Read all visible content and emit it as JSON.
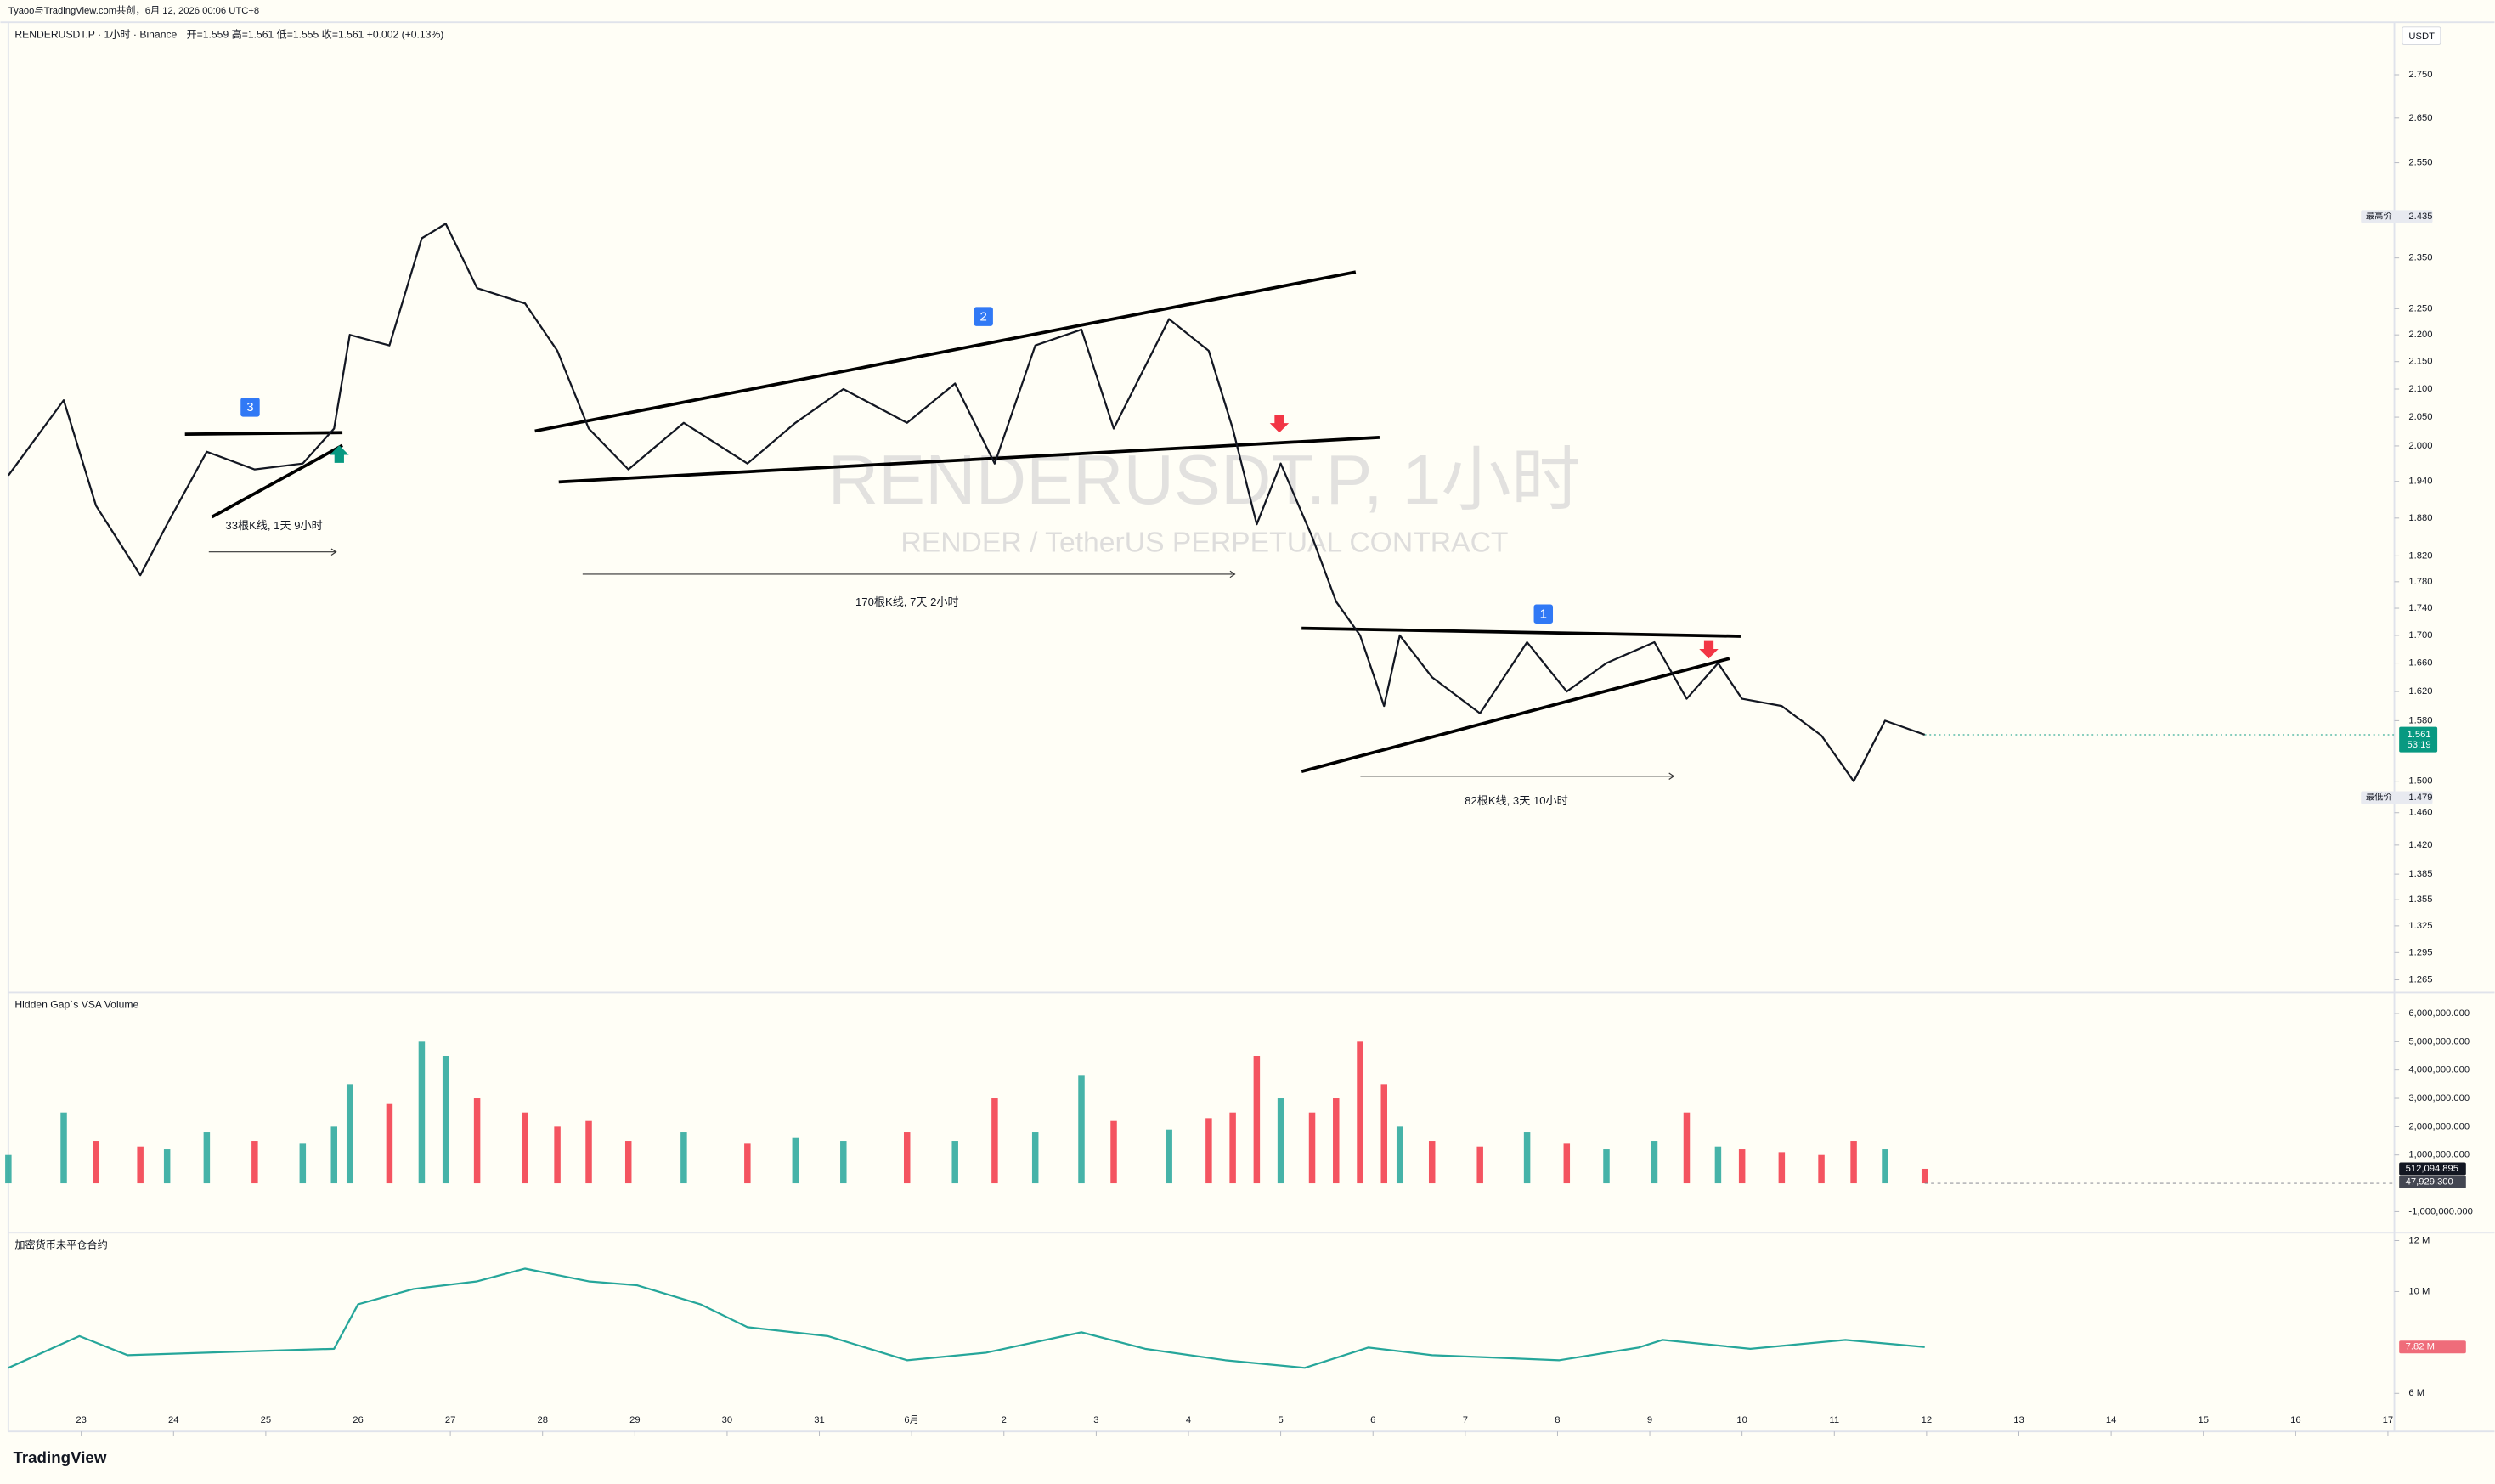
{
  "header": {
    "author": "Tyaoo与TradingView.com共创，6月 12, 2026 00:06 UTC+8",
    "logo": "TradingView"
  },
  "chart_data": [
    {
      "type": "line",
      "title": "RENDERUSDT.P · 1小时 · Binance",
      "ohlc_legend": "开=1.559 高=1.561 低=1.555 收=1.561 +0.002 (+0.13%)",
      "watermark": [
        "RENDERUSDT.P, 1小时",
        "RENDER / TetherUS PERPETUAL CONTRACT"
      ],
      "currency": "USDT",
      "color": "#131722",
      "x": [
        -0.79,
        -0.19,
        0.16,
        0.64,
        0.93,
        1.36,
        1.88,
        2.4,
        2.74,
        2.91,
        3.34,
        3.69,
        3.95,
        4.29,
        4.81,
        5.16,
        5.5,
        5.93,
        6.53,
        7.22,
        7.74,
        8.26,
        8.95,
        9.47,
        9.9,
        10.34,
        10.84,
        11.19,
        11.79,
        12.22,
        12.48,
        12.74,
        13.0,
        13.34,
        13.6,
        13.86,
        14.12,
        14.29,
        14.64,
        15.16,
        15.67,
        16.1,
        16.53,
        17.05,
        17.4,
        17.74,
        18.0,
        18.43,
        18.86,
        19.21,
        19.55,
        19.98
      ],
      "values": [
        1.95,
        2.08,
        1.9,
        1.79,
        1.87,
        1.99,
        1.96,
        1.97,
        2.03,
        2.2,
        2.18,
        2.39,
        2.42,
        2.29,
        2.26,
        2.17,
        2.03,
        1.96,
        2.04,
        1.97,
        2.04,
        2.1,
        2.04,
        2.11,
        1.97,
        2.18,
        2.21,
        2.03,
        2.23,
        2.17,
        2.03,
        1.87,
        1.97,
        1.85,
        1.75,
        1.7,
        1.6,
        1.7,
        1.64,
        1.59,
        1.69,
        1.62,
        1.66,
        1.69,
        1.61,
        1.66,
        1.61,
        1.6,
        1.56,
        1.5,
        1.58,
        1.561
      ],
      "xlim": [
        -0.79,
        25.07
      ],
      "xticks": [
        {
          "value": 0,
          "label": "23"
        },
        {
          "value": 1,
          "label": "24"
        },
        {
          "value": 2,
          "label": "25"
        },
        {
          "value": 3,
          "label": "26"
        },
        {
          "value": 4,
          "label": "27"
        },
        {
          "value": 5,
          "label": "28"
        },
        {
          "value": 6,
          "label": "29"
        },
        {
          "value": 7,
          "label": "30"
        },
        {
          "value": 8,
          "label": "31"
        },
        {
          "value": 9,
          "label": "6月"
        },
        {
          "value": 10,
          "label": "2"
        },
        {
          "value": 11,
          "label": "3"
        },
        {
          "value": 12,
          "label": "4"
        },
        {
          "value": 13,
          "label": "5"
        },
        {
          "value": 14,
          "label": "6"
        },
        {
          "value": 15,
          "label": "7"
        },
        {
          "value": 16,
          "label": "8"
        },
        {
          "value": 17,
          "label": "9"
        },
        {
          "value": 18,
          "label": "10"
        },
        {
          "value": 19,
          "label": "11"
        },
        {
          "value": 20,
          "label": "12"
        },
        {
          "value": 21,
          "label": "13"
        },
        {
          "value": 22,
          "label": "14"
        },
        {
          "value": 23,
          "label": "15"
        },
        {
          "value": 24,
          "label": "16"
        },
        {
          "value": 25,
          "label": "17"
        }
      ],
      "ylim": [
        1.253,
        2.861
      ],
      "log_scale": true,
      "yticks": [
        {
          "value": 2.75,
          "label": "2.750"
        },
        {
          "value": 2.65,
          "label": "2.650"
        },
        {
          "value": 2.55,
          "label": "2.550"
        },
        {
          "value": 2.35,
          "label": "2.350"
        },
        {
          "value": 2.25,
          "label": "2.250"
        },
        {
          "value": 2.2,
          "label": "2.200"
        },
        {
          "value": 2.15,
          "label": "2.150"
        },
        {
          "value": 2.1,
          "label": "2.100"
        },
        {
          "value": 2.05,
          "label": "2.050"
        },
        {
          "value": 2.0,
          "label": "2.000"
        },
        {
          "value": 1.94,
          "label": "1.940"
        },
        {
          "value": 1.88,
          "label": "1.880"
        },
        {
          "value": 1.82,
          "label": "1.820"
        },
        {
          "value": 1.78,
          "label": "1.780"
        },
        {
          "value": 1.74,
          "label": "1.740"
        },
        {
          "value": 1.7,
          "label": "1.700"
        },
        {
          "value": 1.66,
          "label": "1.660"
        },
        {
          "value": 1.62,
          "label": "1.620"
        },
        {
          "value": 1.58,
          "label": "1.580"
        },
        {
          "value": 1.5,
          "label": "1.500"
        },
        {
          "value": 1.46,
          "label": "1.460"
        },
        {
          "value": 1.42,
          "label": "1.420"
        },
        {
          "value": 1.385,
          "label": "1.385"
        },
        {
          "value": 1.355,
          "label": "1.355"
        },
        {
          "value": 1.325,
          "label": "1.325"
        },
        {
          "value": 1.295,
          "label": "1.295"
        },
        {
          "value": 1.265,
          "label": "1.265"
        }
      ],
      "annotations": {
        "pattern_labels": [
          "3",
          "2",
          "1"
        ],
        "measures": [
          "33根K线, 1天 9小时",
          "170根K线, 7天 2小时",
          "82根K线, 3天 10小时"
        ]
      },
      "price_labels": [
        {
          "name": "最高价",
          "value": 2.435,
          "label": "2.435"
        },
        {
          "name": "最低价",
          "value": 1.479,
          "label": "1.479"
        }
      ],
      "last_price": {
        "value": 1.561,
        "label": "1.561",
        "countdown": "53:19",
        "color": "#089981"
      }
    },
    {
      "type": "bar",
      "title": "Hidden Gap`s VSA Volume",
      "up_color": "#26a69a",
      "down_color": "#f23645",
      "x": [
        -0.79,
        -0.19,
        0.16,
        0.64,
        0.93,
        1.36,
        1.88,
        2.4,
        2.74,
        2.91,
        3.34,
        3.69,
        3.95,
        4.29,
        4.81,
        5.16,
        5.5,
        5.93,
        6.53,
        7.22,
        7.74,
        8.26,
        8.95,
        9.47,
        9.9,
        10.34,
        10.84,
        11.19,
        11.79,
        12.22,
        12.48,
        12.74,
        13.0,
        13.34,
        13.6,
        13.86,
        14.12,
        14.29,
        14.64,
        15.16,
        15.67,
        16.1,
        16.53,
        17.05,
        17.4,
        17.74,
        18.0,
        18.43,
        18.86,
        19.21,
        19.55,
        19.98
      ],
      "values": [
        1000000,
        2500000,
        1500000,
        1300000,
        1200000,
        1800000,
        1500000,
        1400000,
        2000000,
        3500000,
        2800000,
        5000000,
        4500000,
        3000000,
        2500000,
        2000000,
        2200000,
        1500000,
        1800000,
        1400000,
        1600000,
        1500000,
        1800000,
        1500000,
        3000000,
        1800000,
        3800000,
        2200000,
        1900000,
        2300000,
        2500000,
        4500000,
        3000000,
        2500000,
        3000000,
        5000000,
        3500000,
        2000000,
        1500000,
        1300000,
        1800000,
        1400000,
        1200000,
        1500000,
        2500000,
        1300000,
        1200000,
        1100000,
        1000000,
        1500000,
        1200000,
        512094.895
      ],
      "xlim": [
        -0.79,
        25.07
      ],
      "ylim": [
        -1630000,
        6400000
      ],
      "yticks": [
        {
          "value": 6000000,
          "label": "6,000,000.000"
        },
        {
          "value": 5000000,
          "label": "5,000,000.000"
        },
        {
          "value": 4000000,
          "label": "4,000,000.000"
        },
        {
          "value": 3000000,
          "label": "3,000,000.000"
        },
        {
          "value": 2000000,
          "label": "2,000,000.000"
        },
        {
          "value": 1000000,
          "label": "1,000,000.000"
        },
        {
          "value": -1000000,
          "label": "-1,000,000.000"
        }
      ],
      "last_labels": [
        {
          "value": 512094.895,
          "label": "512,094.895",
          "color": "#131722"
        },
        {
          "value": 47929.3,
          "label": "47,929.300",
          "color": "#434651"
        }
      ]
    },
    {
      "type": "line",
      "title": "加密货币未平仓合约",
      "color": "#26a69a",
      "x": [
        -0.79,
        -0.02,
        0.5,
        1.36,
        2.74,
        3.0,
        3.6,
        4.29,
        4.81,
        5.5,
        6.02,
        6.71,
        7.22,
        8.09,
        8.95,
        9.81,
        10.84,
        11.53,
        12.4,
        13.26,
        13.95,
        14.64,
        16.02,
        16.88,
        17.14,
        18.09,
        19.12,
        19.98
      ],
      "values": [
        7000000,
        8250000,
        7500000,
        7600000,
        7750000,
        9500000,
        10100000,
        10400000,
        10900000,
        10400000,
        10250000,
        9500000,
        8600000,
        8250000,
        7300000,
        7600000,
        8400000,
        7750000,
        7300000,
        7000000,
        7800000,
        7500000,
        7300000,
        7800000,
        8100000,
        7750000,
        8100000,
        7820000
      ],
      "xlim": [
        -0.79,
        25.07
      ],
      "ylim": [
        4500000,
        12250000
      ],
      "yticks": [
        {
          "value": 12000000,
          "label": "12 M"
        },
        {
          "value": 10000000,
          "label": "10 M"
        },
        {
          "value": 6000000,
          "label": "6 M"
        }
      ],
      "last_labels": [
        {
          "value": 7820000,
          "label": "7.82 M",
          "color": "#ef6c7a"
        }
      ]
    }
  ]
}
